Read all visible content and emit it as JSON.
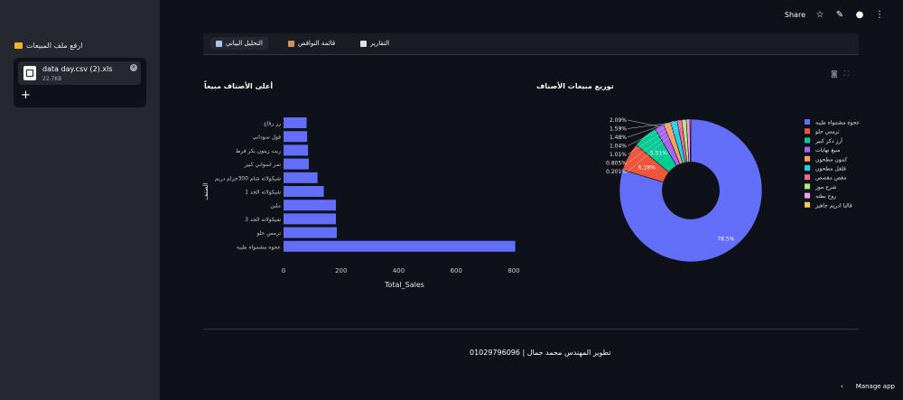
{
  "sidebar": {
    "title": "ارفع ملف المبيعات",
    "file_name": "data day.csv (2).xls",
    "file_size": "22.7KB"
  },
  "topbar": {
    "share_label": "Share",
    "icons": [
      "star-icon",
      "edit-icon",
      "github-icon",
      "more-icon"
    ]
  },
  "tabs": [
    {
      "label": "التحليل البياني",
      "icon": "chart-icon",
      "active": true
    },
    {
      "label": "قائمة النواقص",
      "icon": "box-icon",
      "active": false
    },
    {
      "label": "التقارير",
      "icon": "file-icon",
      "active": false
    }
  ],
  "modebar": {
    "icons": [
      "camera-icon",
      "fullscreen-icon"
    ]
  },
  "bar_chart_title": "أعلى الأصناف مبيعاً",
  "pie_chart_title": "توزيع مبيعات الأصناف",
  "chart_data": [
    {
      "type": "bar",
      "orientation": "horizontal",
      "categories": [
        "عجوه مشمواه طيبه",
        "ترمس حلو",
        "شيكولاته الجد 3",
        "ملبن",
        "شيكولاته الجد 1",
        "شيكولاته شام 300جرام دريم",
        "تمر اسواني كبير",
        "زيت زيتون بكر فرط",
        "فول سوداني",
        "رز رفاع"
      ],
      "values": [
        805,
        185,
        182,
        182,
        140,
        118,
        88,
        85,
        82,
        80
      ],
      "xlabel": "Total_Sales",
      "ylabel": "الصنف",
      "xlim": [
        0,
        850
      ],
      "xticks": [
        "0",
        "200",
        "400",
        "600",
        "800"
      ],
      "color": "#636efa"
    },
    {
      "type": "pie",
      "hole": 0.4,
      "labels": [
        "عجوه مشمواه طيبه",
        "ترمس حلو",
        "أرز دكر كبير",
        "مبيع نهايات",
        "كمون مطحون",
        "فلفل مطحون",
        "مقص مقصص",
        "شرح موز",
        "روح بطنه",
        "قالبا ادريم جاهيز"
      ],
      "values": [
        78.5,
        6.28,
        5.51,
        2.09,
        1.59,
        1.48,
        1.04,
        1.01,
        0.805,
        0.201
      ],
      "value_labels": [
        "78.5%",
        "6.28%",
        "5.51%",
        "2.09%",
        "1.59%",
        "1.48%",
        "1.04%",
        "1.01%",
        "0.805%",
        "0.201%"
      ],
      "colors": [
        "#636efa",
        "#ef553b",
        "#00cc96",
        "#ab63fa",
        "#ffa15a",
        "#19d3f3",
        "#ff6692",
        "#b6e880",
        "#ff97ff",
        "#fecb52"
      ],
      "legend_placement": "right"
    }
  ],
  "footer": {
    "text": "تطوير المهندس محمد جمال | 01029796096"
  },
  "manage_app": {
    "label": "Manage app"
  }
}
